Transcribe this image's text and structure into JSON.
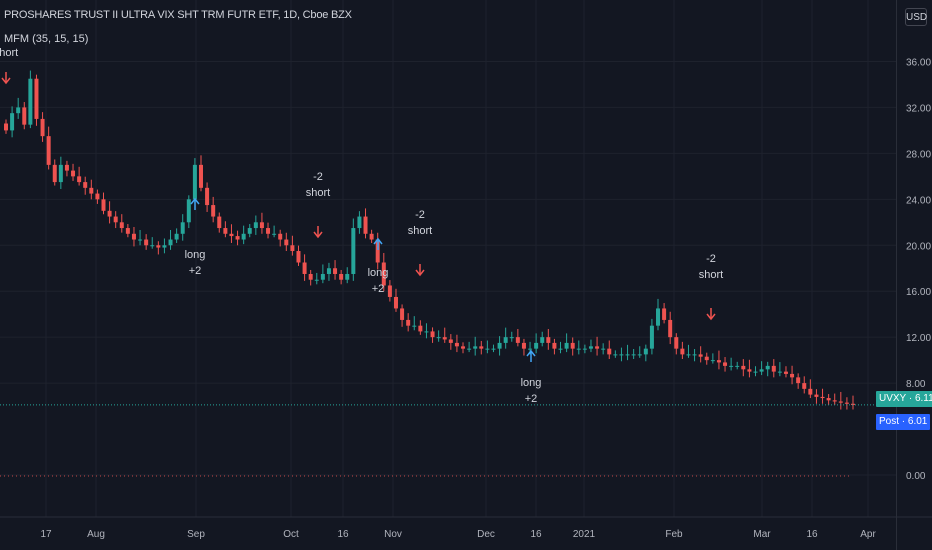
{
  "header": {
    "title": "PROSHARES TRUST II ULTRA VIX SHT TRM FUTR ETF, 1D, Cboe BZX",
    "indicator": "MFM (35, 15, 15)",
    "currency_button": "USD"
  },
  "price_badges": {
    "last": "UVXY · 6.11",
    "post": "Post · 6.01"
  },
  "colors": {
    "background": "#131722",
    "up": "#26a69a",
    "down": "#ef5350",
    "signal_arrow": "#42a5f5",
    "price_line": "#26a69a"
  },
  "chart_data": {
    "type": "candlestick",
    "title": "PROSHARES TRUST II ULTRA VIX SHT TRM FUTR ETF, 1D, Cboe BZX",
    "y_axis": {
      "ticks": [
        "36.00",
        "32.00",
        "28.00",
        "24.00",
        "20.00",
        "16.00",
        "12.00",
        "8.00",
        "0.00"
      ],
      "ylim": [
        0,
        37
      ],
      "position": "right"
    },
    "x_axis": {
      "ticks": [
        "17",
        "Aug",
        "Sep",
        "Oct",
        "16",
        "Nov",
        "Dec",
        "16",
        "2021",
        "Feb",
        "Mar",
        "16",
        "Apr"
      ]
    },
    "last_price": 6.11,
    "post_price": 6.01,
    "close_series": [
      30,
      31.5,
      32,
      30.5,
      34.5,
      31,
      29.5,
      27,
      25.5,
      27,
      26.5,
      26,
      25.5,
      25,
      24.5,
      24,
      23,
      22.5,
      22,
      21.5,
      21,
      20.5,
      20.5,
      20,
      20,
      19.8,
      20,
      20.5,
      21,
      22,
      24,
      27,
      25,
      23.5,
      22.5,
      21.5,
      21,
      20.8,
      20.5,
      21,
      21.5,
      22,
      21.5,
      21,
      21,
      20.5,
      20,
      19.5,
      18.5,
      17.5,
      17,
      17,
      17.5,
      18,
      17.5,
      17,
      17.5,
      21.5,
      22.5,
      21,
      20.5,
      18.5,
      16.5,
      15.5,
      14.5,
      13.5,
      13,
      13,
      12.5,
      12.5,
      12,
      12,
      11.8,
      11.5,
      11.2,
      11,
      11,
      11.2,
      11,
      11,
      11,
      11.5,
      12,
      12,
      11.5,
      11,
      11,
      11.5,
      12,
      11.5,
      11,
      11,
      11.5,
      11,
      11,
      11,
      11.2,
      11,
      11,
      10.5,
      10.5,
      10.5,
      10.5,
      10.5,
      10.5,
      11,
      13,
      14.5,
      13.5,
      12,
      11,
      10.5,
      10.5,
      10.5,
      10.3,
      10,
      10,
      9.8,
      9.5,
      9.5,
      9.5,
      9.2,
      9,
      9,
      9.2,
      9.5,
      9,
      9,
      8.8,
      8.5,
      8,
      7.5,
      7,
      6.8,
      6.7,
      6.5,
      6.4,
      6.3,
      6.2,
      6.1
    ],
    "annotations": [
      {
        "label": "short",
        "direction": "down"
      },
      {
        "label": "long",
        "value": "+2",
        "direction": "up"
      },
      {
        "label": "short",
        "value": "-2",
        "direction": "down"
      },
      {
        "label": "long",
        "value": "+2",
        "direction": "up"
      },
      {
        "label": "short",
        "value": "-2",
        "direction": "down"
      },
      {
        "label": "long",
        "value": "+2",
        "direction": "up"
      },
      {
        "label": "short",
        "value": "-2",
        "direction": "down"
      }
    ],
    "indicator": {
      "name": "MFM (35, 15, 15)",
      "level": 0.0
    }
  }
}
